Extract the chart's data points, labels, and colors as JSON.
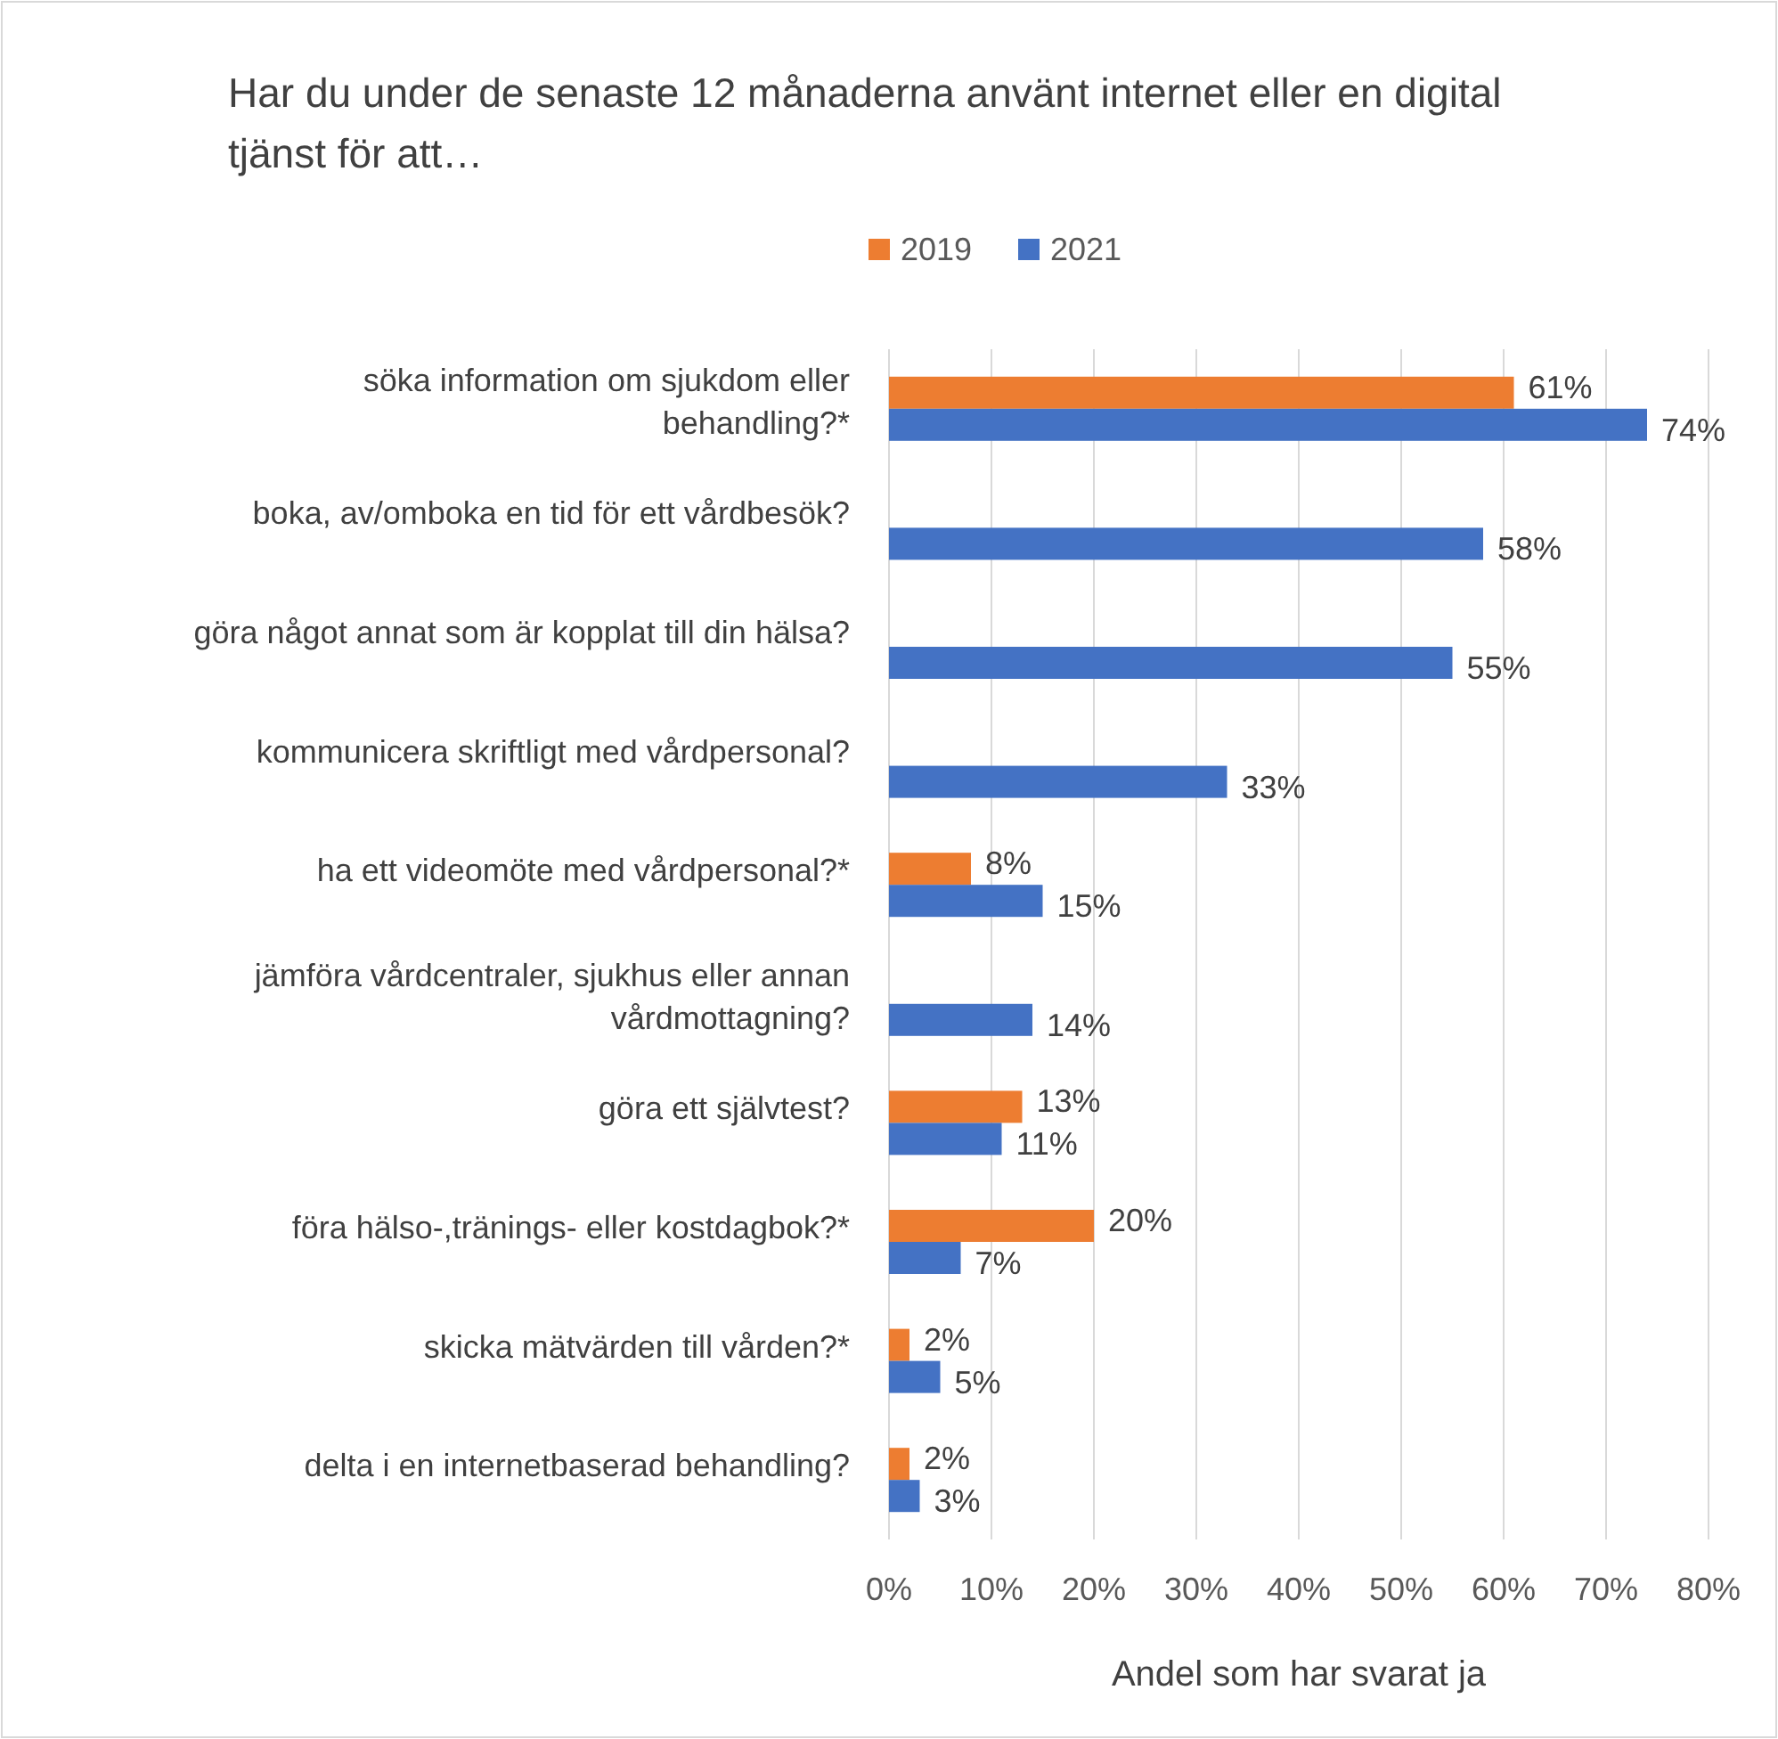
{
  "chart_data": {
    "type": "bar",
    "orientation": "horizontal",
    "title": "Har du under de senaste 12 månaderna använt internet eller en digital tjänst för att…",
    "xlabel": "Andel som har svarat ja",
    "categories": [
      "söka information om sjukdom eller\nbehandling?*",
      "boka, av/omboka en tid för ett vårdbesök?",
      "göra något annat som är kopplat till din hälsa?",
      "kommunicera skriftligt med vårdpersonal?",
      "ha ett videomöte med vårdpersonal?*",
      "jämföra vårdcentraler, sjukhus eller annan\nvårdmottagning?",
      "göra ett självtest?",
      "föra hälso-,tränings- eller kostdagbok?*",
      "skicka mätvärden till vården?*",
      "delta i en internetbaserad behandling?"
    ],
    "series": [
      {
        "name": "2019",
        "color": "#ed7d31",
        "values": [
          61,
          null,
          null,
          null,
          8,
          null,
          13,
          20,
          2,
          2
        ],
        "value_labels": [
          "61%",
          null,
          null,
          null,
          "8%",
          null,
          "13%",
          "20%",
          "2%",
          "2%"
        ]
      },
      {
        "name": "2021",
        "color": "#4472c4",
        "values": [
          74,
          58,
          55,
          33,
          15,
          14,
          11,
          7,
          5,
          3
        ],
        "value_labels": [
          "74%",
          "58%",
          "55%",
          "33%",
          "15%",
          "14%",
          "11%",
          "7%",
          "5%",
          "3%"
        ]
      }
    ],
    "xlim": [
      0,
      80
    ],
    "xticks": [
      {
        "value": 0,
        "label": "0%"
      },
      {
        "value": 10,
        "label": "10%"
      },
      {
        "value": 20,
        "label": "20%"
      },
      {
        "value": 30,
        "label": "30%"
      },
      {
        "value": 40,
        "label": "40%"
      },
      {
        "value": 50,
        "label": "50%"
      },
      {
        "value": 60,
        "label": "60%"
      },
      {
        "value": 70,
        "label": "70%"
      },
      {
        "value": 80,
        "label": "80%"
      }
    ],
    "grid": "x",
    "legend": "top"
  }
}
